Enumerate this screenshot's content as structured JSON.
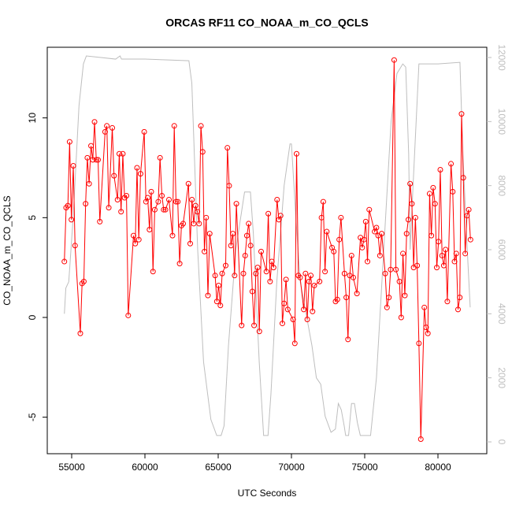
{
  "chart_data": {
    "type": "line",
    "title": "ORCAS RF11 CO_NOAA_m_CO_QCLS",
    "x_label": "UTC Seconds",
    "y_label": "CO_NOAA_m_CO_QCLS",
    "xlim": [
      53333,
      83333
    ],
    "xticks": [
      55000,
      60000,
      65000,
      70000,
      75000,
      80000
    ],
    "ylim": [
      -6.83,
      13.54
    ],
    "yticks": [
      -5,
      0,
      5,
      10
    ],
    "y2lim": [
      -369,
      12320
    ],
    "y2ticks": [
      0,
      2000,
      4000,
      6000,
      8000,
      10000,
      12000
    ],
    "y2_color": "#bebebe",
    "series": [
      {
        "color": "#bebebe",
        "axis": "y2",
        "x": [
          54500,
          54600,
          54800,
          55100,
          55500,
          55800,
          56000,
          57000,
          58000,
          58300,
          58400,
          60000,
          63000,
          63200,
          63600,
          64000,
          64500,
          64900,
          65200,
          65400,
          65700,
          66200,
          66800,
          67200,
          67400,
          67800,
          68100,
          68400,
          68600,
          69000,
          69500,
          69900,
          70000,
          70300,
          70600,
          71000,
          71400,
          71700,
          72000,
          72300,
          72700,
          73000,
          73200,
          73400,
          73600,
          73700,
          73900,
          74100,
          74300,
          74500,
          74700,
          75000,
          75400,
          75800,
          76300,
          76800,
          77200,
          77600,
          77800,
          78000,
          78100,
          78300,
          78700,
          80000,
          81500,
          81700,
          82000,
          82200
        ],
        "values": [
          4000,
          4800,
          5000,
          7000,
          10500,
          11800,
          12050,
          12000,
          11950,
          12050,
          11950,
          11950,
          11900,
          11200,
          6000,
          2500,
          700,
          200,
          200,
          500,
          3000,
          6000,
          7800,
          7800,
          6500,
          2500,
          200,
          200,
          1500,
          5000,
          8000,
          9300,
          9300,
          7000,
          5000,
          4000,
          3000,
          2000,
          1800,
          800,
          300,
          400,
          1200,
          1000,
          500,
          200,
          200,
          1200,
          1200,
          600,
          200,
          200,
          200,
          2000,
          6000,
          10000,
          11500,
          11800,
          11700,
          9000,
          6000,
          8000,
          11800,
          11800,
          11850,
          9000,
          6000,
          4200
        ]
      },
      {
        "color": "#ff0000",
        "marker": "circle",
        "x": [
          54500,
          54620,
          54740,
          54860,
          54980,
          55110,
          55230,
          55590,
          55710,
          55830,
          55950,
          56070,
          56190,
          56320,
          56440,
          56560,
          56680,
          56800,
          56920,
          57280,
          57400,
          57530,
          57770,
          57890,
          58130,
          58250,
          58370,
          58490,
          58610,
          58740,
          58860,
          59220,
          59340,
          59460,
          59580,
          59700,
          59950,
          60070,
          60190,
          60310,
          60430,
          60550,
          60670,
          60910,
          61030,
          61160,
          61280,
          61400,
          61640,
          61880,
          62000,
          62120,
          62240,
          62370,
          62490,
          62610,
          62970,
          63090,
          63210,
          63330,
          63450,
          63580,
          63700,
          63820,
          63940,
          64060,
          64180,
          64300,
          64420,
          64790,
          64910,
          65030,
          65150,
          65270,
          65510,
          65630,
          65750,
          65870,
          66000,
          66120,
          66240,
          66600,
          66720,
          66840,
          66960,
          67080,
          67210,
          67330,
          67450,
          67570,
          67690,
          67810,
          67930,
          68290,
          68420,
          68540,
          68660,
          68780,
          69020,
          69140,
          69260,
          69380,
          69500,
          69630,
          69750,
          70110,
          70230,
          70350,
          70470,
          70590,
          70840,
          70960,
          71080,
          71200,
          71320,
          71440,
          71560,
          71920,
          72050,
          72170,
          72290,
          72410,
          72770,
          72890,
          73010,
          73130,
          73260,
          73380,
          73620,
          73740,
          73860,
          73980,
          74100,
          74220,
          74470,
          74710,
          74830,
          74950,
          75070,
          75190,
          75310,
          75680,
          75800,
          75920,
          76040,
          76160,
          76400,
          76520,
          76650,
          76770,
          77010,
          77130,
          77370,
          77490,
          77610,
          77740,
          77860,
          77980,
          78100,
          78220,
          78340,
          78460,
          78580,
          78700,
          78830,
          79070,
          79190,
          79310,
          79430,
          79550,
          79670,
          79800,
          79920,
          80040,
          80160,
          80280,
          80400,
          80520,
          80640,
          80890,
          81010,
          81130,
          81250,
          81370,
          81490,
          81610,
          81730,
          81860,
          81980,
          82100,
          82220
        ],
        "values": [
          2.8,
          5.5,
          5.6,
          8.8,
          4.9,
          7.6,
          3.6,
          -0.8,
          1.7,
          1.8,
          5.7,
          8.0,
          6.7,
          8.6,
          7.9,
          9.8,
          7.9,
          7.9,
          4.8,
          9.3,
          9.6,
          5.5,
          9.5,
          7.1,
          5.9,
          8.2,
          5.3,
          8.2,
          6.0,
          6.1,
          0.1,
          4.1,
          3.7,
          7.5,
          3.9,
          7.2,
          9.3,
          5.8,
          6.0,
          4.4,
          6.3,
          2.3,
          5.4,
          5.8,
          8.0,
          6.1,
          5.4,
          5.4,
          5.9,
          4.1,
          9.6,
          5.8,
          5.8,
          2.7,
          4.6,
          4.7,
          6.7,
          3.7,
          5.9,
          4.7,
          5.6,
          5.3,
          4.7,
          9.6,
          8.3,
          3.3,
          5.0,
          1.1,
          4.2,
          2.1,
          0.8,
          1.6,
          0.6,
          2.2,
          2.6,
          8.5,
          6.6,
          3.6,
          4.2,
          2.1,
          5.7,
          -0.4,
          2.2,
          3.1,
          4.1,
          4.7,
          3.6,
          1.3,
          -0.4,
          2.2,
          2.5,
          -0.7,
          3.3,
          2.3,
          5.2,
          1.8,
          2.8,
          2.5,
          5.9,
          4.9,
          5.1,
          -0.3,
          0.7,
          1.9,
          0.4,
          -0.1,
          -1.3,
          8.2,
          2.1,
          2.0,
          0.4,
          2.2,
          -0.1,
          1.8,
          2.1,
          0.3,
          1.6,
          1.8,
          5.0,
          5.8,
          2.3,
          4.3,
          3.5,
          3.3,
          0.8,
          0.9,
          3.9,
          5.0,
          2.2,
          1.0,
          -1.1,
          2.1,
          3.1,
          2.0,
          1.2,
          4.0,
          3.5,
          3.9,
          4.8,
          2.8,
          5.4,
          4.3,
          4.5,
          4.1,
          3.1,
          4.2,
          2.2,
          0.5,
          1.0,
          2.4,
          12.9,
          2.4,
          1.8,
          0.0,
          3.2,
          1.1,
          4.2,
          4.9,
          6.7,
          5.7,
          2.5,
          5.0,
          2.6,
          -1.3,
          -6.1,
          0.5,
          -0.5,
          -0.8,
          6.2,
          4.1,
          6.5,
          5.7,
          2.5,
          3.8,
          7.4,
          3.1,
          2.6,
          3.4,
          0.8,
          7.7,
          6.3,
          2.8,
          3.2,
          0.4,
          1.0,
          10.2,
          7.0,
          3.2,
          5.1,
          5.4,
          3.9
        ]
      }
    ]
  }
}
